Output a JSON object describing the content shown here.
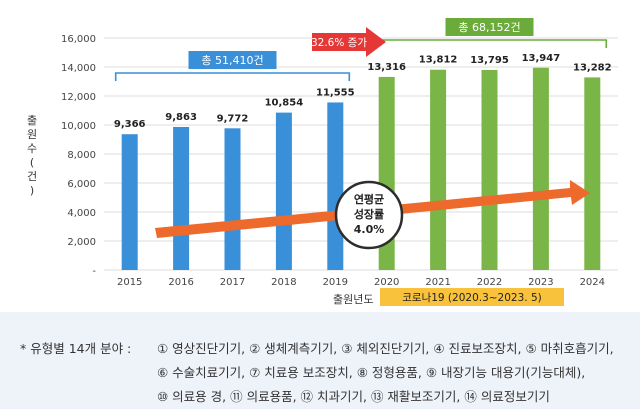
{
  "chart_data": {
    "type": "bar",
    "title": "",
    "xlabel": "출원년도",
    "ylabel": "출원수 (건)",
    "ylim": [
      0,
      16000
    ],
    "yticks": [
      0,
      2000,
      4000,
      6000,
      8000,
      10000,
      12000,
      14000,
      16000
    ],
    "ytick_labels": [
      "-",
      "2,000",
      "4,000",
      "6,000",
      "8,000",
      "10,000",
      "12,000",
      "14,000",
      "16,000"
    ],
    "categories": [
      "2015",
      "2016",
      "2017",
      "2018",
      "2019",
      "2020",
      "2021",
      "2022",
      "2023",
      "2024"
    ],
    "values": [
      9366,
      9863,
      9772,
      10854,
      11555,
      13316,
      13812,
      13795,
      13947,
      13282
    ],
    "value_labels": [
      "9,366",
      "9,863",
      "9,772",
      "10,854",
      "11,555",
      "13,316",
      "13,812",
      "13,795",
      "13,947",
      "13,282"
    ],
    "bar_colors": [
      "#3a8fd9",
      "#3a8fd9",
      "#3a8fd9",
      "#3a8fd9",
      "#3a8fd9",
      "#7ab548",
      "#7ab548",
      "#7ab548",
      "#7ab548",
      "#7ab548"
    ],
    "groups": [
      {
        "label": "총 51,410건",
        "from": "2015",
        "to": "2019",
        "color": "#3a8fd9"
      },
      {
        "label": "총 68,152건",
        "from": "2020",
        "to": "2024",
        "color": "#6aab3a"
      }
    ],
    "annotations": {
      "increase_label": "32.6% 증가",
      "increase_color": "#e63737",
      "cagr_lines": [
        "연평균",
        "성장률",
        "4.0%"
      ],
      "trend_color": "#ee6a2c",
      "period_label": "코로나19 (2020.3~2023. 5)",
      "period_color": "#f9c23c"
    },
    "grid": true,
    "legend": "none"
  },
  "notes": {
    "prefix": "* 유형별 14개 분야 :",
    "line1": "① 영상진단기기, ② 생체계측기기, ③ 체외진단기기, ④ 진료보조장치, ⑤ 마취호흡기기,",
    "line2": "⑥ 수술치료기기, ⑦ 치료용 보조장치, ⑧ 정형용품, ⑨ 내장기능 대용기(기능대체),",
    "line3": "⑩ 의료용 경, ⑪ 의료용품, ⑫ 치과기기, ⑬ 재활보조기기, ⑭ 의료정보기기"
  }
}
